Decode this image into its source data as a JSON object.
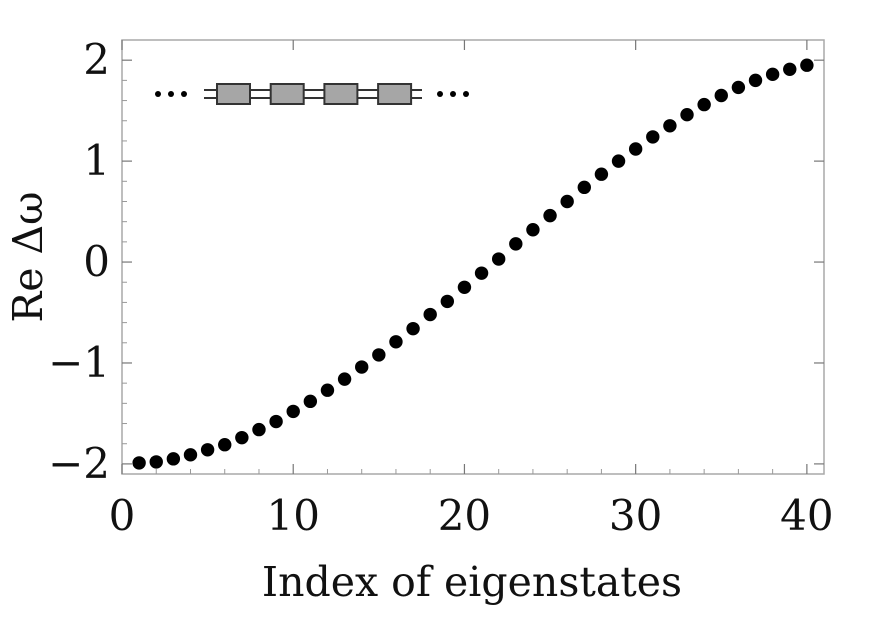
{
  "chart_data": {
    "type": "scatter",
    "title": "",
    "xlabel": "Index of eigenstates",
    "ylabel": "Re Δω",
    "xlim": [
      0,
      41
    ],
    "ylim": [
      -2.1,
      2.2
    ],
    "x_ticks": [
      0,
      10,
      20,
      30,
      40
    ],
    "y_ticks": [
      -2,
      -1,
      0,
      1,
      2
    ],
    "x_tick_labels": [
      "0",
      "10",
      "20",
      "30",
      "40"
    ],
    "y_tick_labels": [
      "−2",
      "−1",
      "0",
      "1",
      "2"
    ],
    "grid": false,
    "legend": "none",
    "marker_color": "#000000",
    "series": [
      {
        "x": [
          1,
          2,
          3,
          4,
          5,
          6,
          7,
          8,
          9,
          10,
          11,
          12,
          13,
          14,
          15,
          16,
          17,
          18,
          19,
          20,
          21,
          22,
          23,
          24,
          25,
          26,
          27,
          28,
          29,
          30,
          31,
          32,
          33,
          34,
          35,
          36,
          37,
          38,
          39,
          40
        ],
        "values": [
          -1.99,
          -1.98,
          -1.95,
          -1.91,
          -1.86,
          -1.81,
          -1.74,
          -1.66,
          -1.58,
          -1.48,
          -1.38,
          -1.27,
          -1.16,
          -1.04,
          -0.92,
          -0.79,
          -0.66,
          -0.52,
          -0.39,
          -0.25,
          -0.11,
          0.03,
          0.18,
          0.32,
          0.46,
          0.6,
          0.74,
          0.87,
          1.0,
          1.12,
          1.24,
          1.35,
          1.46,
          1.56,
          1.65,
          1.73,
          1.8,
          1.86,
          1.91,
          1.95
        ]
      }
    ],
    "inset": {
      "description_icon": "coupled-resonator-chain-icon",
      "resonator_count": 4,
      "resonator_fill": "#a6a6a6",
      "resonator_stroke": "#333333"
    }
  }
}
